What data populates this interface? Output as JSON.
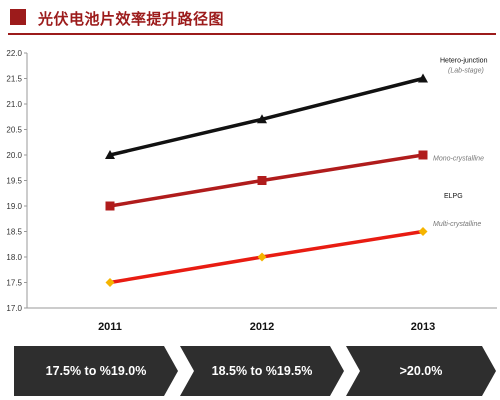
{
  "title": "光伏电池片效率提升路径图",
  "colors": {
    "title": "#9c1b1b",
    "band": "#2e2e2e"
  },
  "chart_data": {
    "type": "line",
    "title": "光伏电池片效率提升路径图",
    "x": [
      "2011",
      "2012",
      "2013"
    ],
    "ylim": [
      17.0,
      22.0
    ],
    "yticks": [
      "17.0",
      "17.5",
      "18.0",
      "18.5",
      "19.0",
      "19.5",
      "20.0",
      "20.5",
      "21.0",
      "21.5",
      "22.0"
    ],
    "grid": false,
    "series": [
      {
        "name": "Hetero-junction",
        "sublabel": "(Lab-stage)",
        "color": "#111111",
        "marker": "triangle",
        "values": [
          20.0,
          20.7,
          21.5
        ]
      },
      {
        "name": "Mono-crystalline",
        "color": "#b01c1c",
        "marker": "square",
        "values": [
          19.0,
          19.5,
          20.0
        ]
      },
      {
        "name": "Multi-crystalline",
        "color": "#e81c12",
        "marker": "diamond",
        "markerColor": "#f5b400",
        "values": [
          17.5,
          18.0,
          18.5
        ]
      }
    ],
    "annotations": [
      {
        "text": "ELPG"
      }
    ]
  },
  "bands": [
    {
      "label": "17.5% to %19.0%"
    },
    {
      "label": "18.5% to %19.5%"
    },
    {
      "label": ">20.0%"
    }
  ]
}
